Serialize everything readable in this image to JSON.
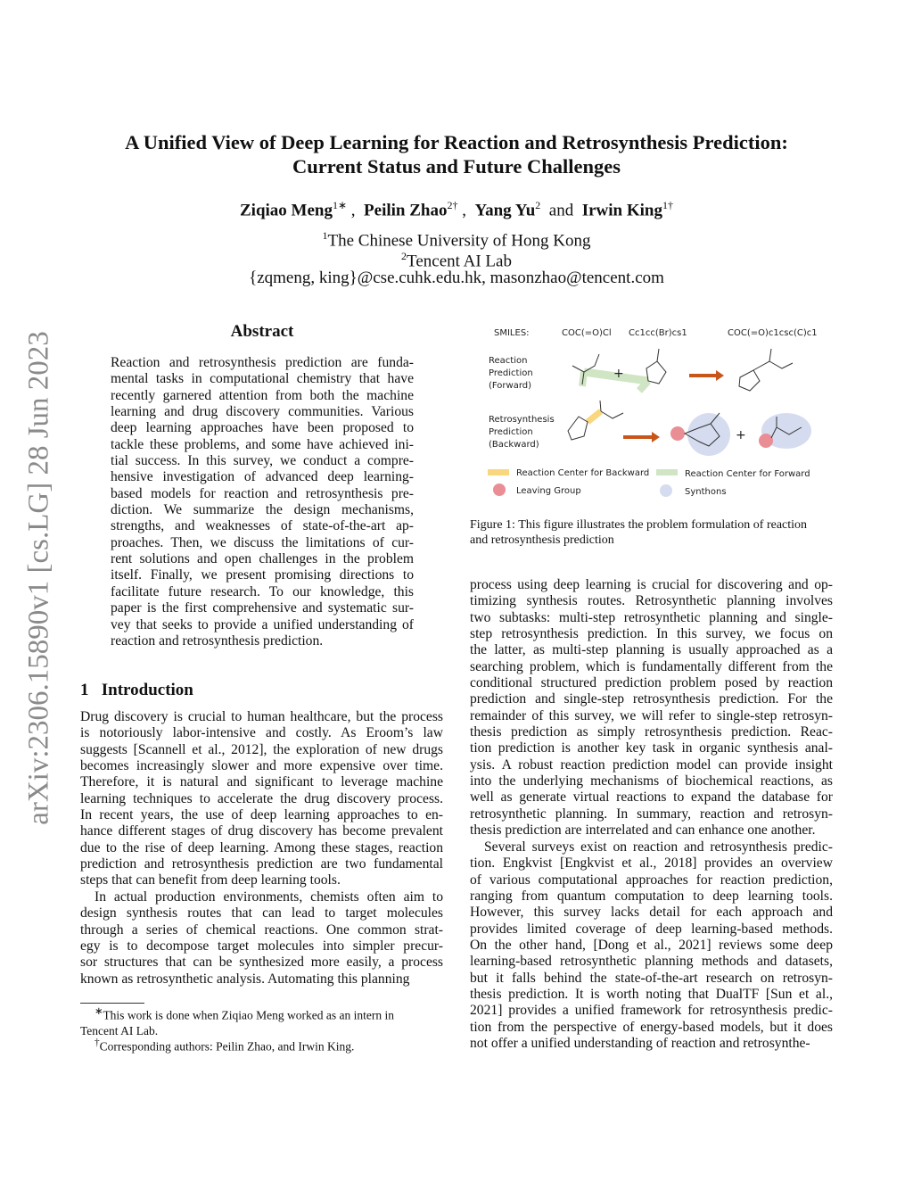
{
  "stamp": "arXiv:2306.15890v1  [cs.LG]  28 Jun 2023",
  "title": [
    "A Unified View of Deep Learning for Reaction and Retrosynthesis Prediction:",
    "Current Status and Future Challenges"
  ],
  "authors": [
    {
      "name": "Ziqiao Meng",
      "sup": "1∗"
    },
    {
      "name": "Peilin Zhao",
      "sup": "2†"
    },
    {
      "name": "Yang Yu",
      "sup": "2"
    },
    {
      "name": "Irwin King",
      "sup": "1†"
    }
  ],
  "and": "and",
  "affiliations": [
    {
      "sup": "1",
      "name": "The Chinese University of Hong Kong"
    },
    {
      "sup": "2",
      "name": "Tencent AI Lab"
    }
  ],
  "emails": "{zqmeng, king}@cse.cuhk.edu.hk, masonzhao@tencent.com",
  "abstract": {
    "heading": "Abstract",
    "lines": [
      "Reaction and retrosynthesis prediction are funda-",
      "mental tasks in computational chemistry that have",
      "recently garnered attention from both the machine",
      "learning and drug discovery communities. Various",
      "deep learning approaches have been proposed to",
      "tackle these problems, and some have achieved ini-",
      "tial success. In this survey, we conduct a compre-",
      "hensive investigation of advanced deep learning-",
      "based models for reaction and retrosynthesis pre-",
      "diction.  We summarize the design mechanisms,",
      "strengths, and weaknesses of state-of-the-art ap-",
      "proaches. Then, we discuss the limitations of cur-",
      "rent solutions and open challenges in the problem",
      "itself. Finally, we present promising directions to",
      "facilitate future research.  To our knowledge, this",
      "paper is the first comprehensive and systematic sur-",
      "vey that seeks to provide a unified understanding of",
      "reaction and retrosynthesis prediction."
    ]
  },
  "intro": {
    "number": "1",
    "heading": "Introduction",
    "p1": [
      "Drug discovery is crucial to human healthcare, but the process",
      "is notoriously labor-intensive and costly.  As Eroom’s law",
      "suggests [Scannell et al., 2012], the exploration of new drugs",
      "becomes increasingly slower and more expensive over time.",
      "Therefore, it is natural and significant to leverage machine",
      "learning techniques to accelerate the drug discovery process.",
      "In recent years, the use of deep learning approaches to en-",
      "hance different stages of drug discovery has become prevalent",
      "due to the rise of deep learning. Among these stages, reaction",
      "prediction and retrosynthesis prediction are two fundamental",
      "steps that can benefit from deep learning tools."
    ],
    "p2": [
      "In actual production environments, chemists often aim to",
      "design synthesis routes that can lead to target molecules",
      "through a series of chemical reactions.  One common strat-",
      "egy is to decompose target molecules into simpler precur-",
      "sor structures that can be synthesized more easily, a process",
      "known as retrosynthetic analysis.  Automating this planning"
    ]
  },
  "right": {
    "p1": [
      "process using deep learning is crucial for discovering and op-",
      "timizing synthesis routes.  Retrosynthetic planning involves",
      "two subtasks:  multi-step retrosynthetic planning and single-",
      "step retrosynthesis prediction.  In this survey, we focus on",
      "the latter, as multi-step planning is usually approached as a",
      "searching problem, which is fundamentally different from the",
      "conditional structured prediction problem posed by reaction",
      "prediction and single-step retrosynthesis prediction.  For the",
      "remainder of this survey, we will refer to single-step retrosyn-",
      "thesis prediction as simply retrosynthesis prediction.  Reac-",
      "tion prediction is another key task in organic synthesis anal-",
      "ysis.  A robust reaction prediction model can provide insight",
      "into the underlying mechanisms of biochemical reactions, as",
      "well as generate virtual reactions to expand the database for",
      "retrosynthetic planning.  In summary, reaction and retrosyn-",
      "thesis prediction are interrelated and can enhance one another."
    ],
    "p2": [
      "Several surveys exist on reaction and retrosynthesis predic-",
      "tion.  Engkvist [Engkvist et al., 2018] provides an overview",
      "of various computational approaches for reaction prediction,",
      "ranging from quantum computation to deep learning tools.",
      "However, this survey lacks detail for each approach and",
      "provides limited coverage of deep learning-based methods.",
      "On the other hand, [Dong et al., 2021] reviews some deep",
      "learning-based retrosynthetic planning methods and datasets,",
      "but it falls behind the state-of-the-art research on retrosyn-",
      "thesis prediction.  It is worth noting that DualTF [Sun et al.,",
      "2021] provides a unified framework for retrosynthesis predic-",
      "tion from the perspective of energy-based models, but it does",
      "not offer a unified understanding of reaction and retrosynthe-"
    ]
  },
  "figure": {
    "smiles_label": "SMILES:",
    "smiles": [
      "COC(=O)Cl",
      "Cc1cc(Br)cs1",
      "COC(=O)c1csc(C)c1"
    ],
    "row1": [
      "Reaction",
      "Prediction",
      "(Forward)"
    ],
    "row2": [
      "Retrosynthesis",
      "Prediction",
      "(Backward)"
    ],
    "legend": [
      "Reaction Center for Backward",
      "Reaction Center for Forward",
      "Leaving Group",
      "Synthons"
    ],
    "colors": {
      "backward": "#f9d77e",
      "forward": "#cfe5c4",
      "leaving": "#e98e95",
      "synthon": "#d6dcef",
      "arrow": "#c8561a"
    },
    "caption": [
      "Figure 1: This figure illustrates the problem formulation of reaction",
      "and retrosynthesis prediction"
    ]
  },
  "footnotes": [
    {
      "mark": "∗",
      "text": "This work is done when Ziqiao Meng worked as an intern in",
      "cont": "Tencent AI Lab."
    },
    {
      "mark": "†",
      "text": "Corresponding authors: Peilin Zhao, and Irwin King."
    }
  ]
}
